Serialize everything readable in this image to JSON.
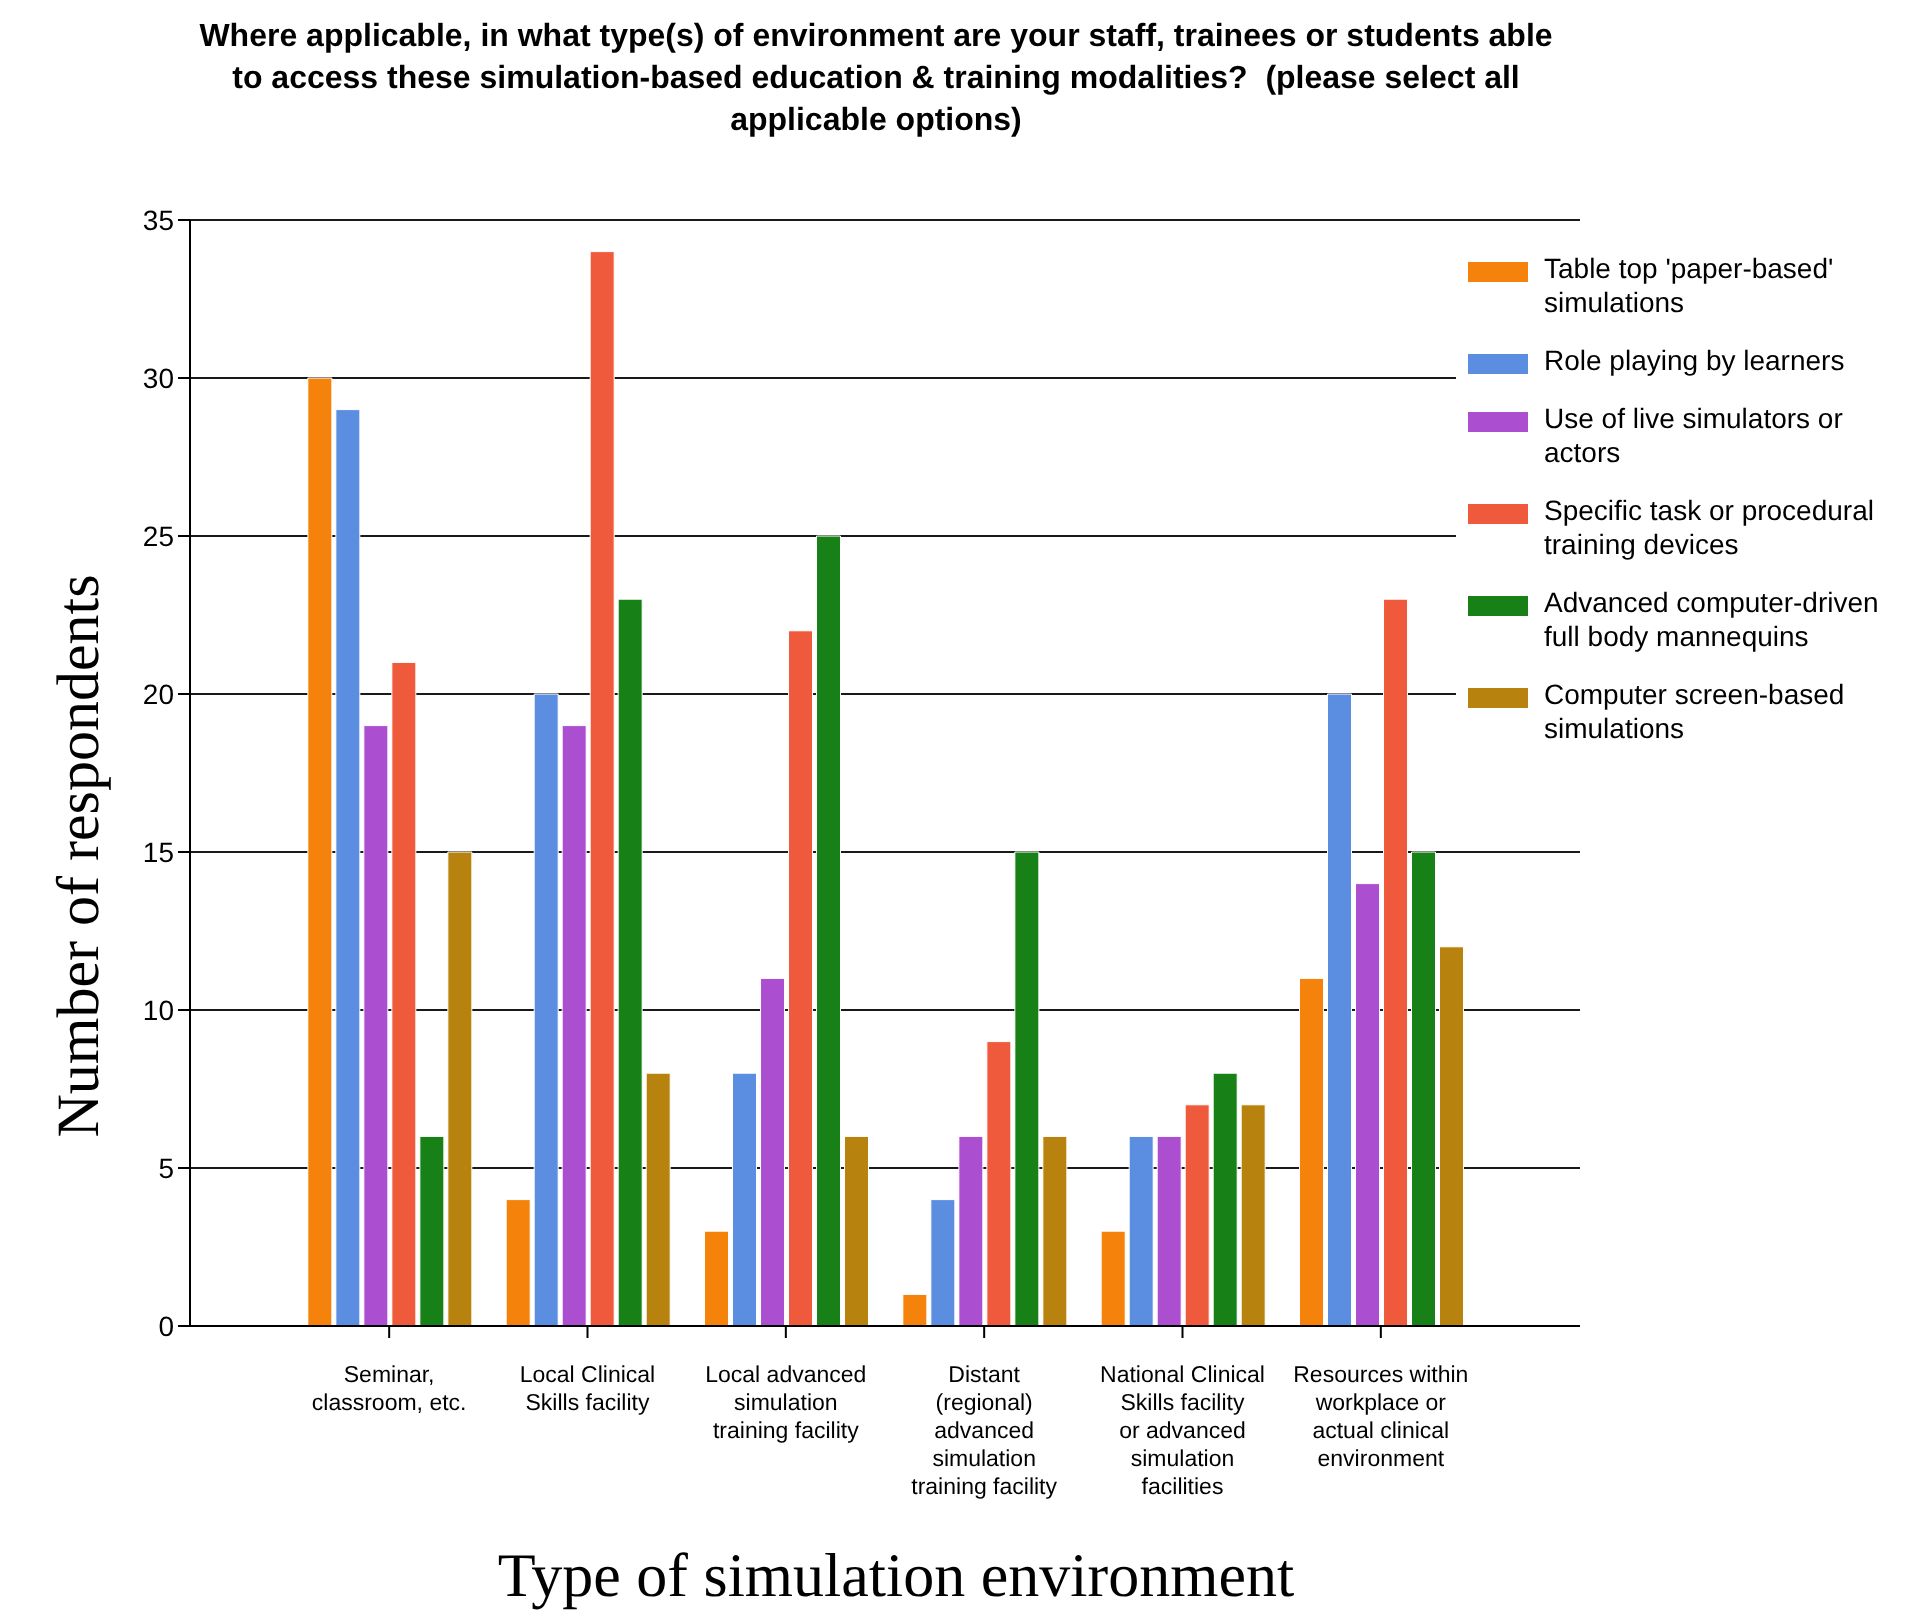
{
  "chart_data": {
    "type": "bar",
    "title": "Where applicable, in what type(s) of environment are your staff, trainees or students able to access these simulation-based education & training modalities?  (please select all applicable options)",
    "xlabel": "Type of simulation environment",
    "ylabel": "Number of respondents",
    "categories": [
      "Seminar, classroom, etc.",
      "Local Clinical Skills facility",
      "Local advanced simulation training facility",
      "Distant (regional) advanced simulation training facility",
      "National Clinical Skills facility or advanced simulation facilities",
      "Resources within workplace or actual clinical environment"
    ],
    "series": [
      {
        "name": "Table top 'paper-based' simulations",
        "color": "#f5820a",
        "values": [
          30,
          4,
          3,
          1,
          3,
          11
        ]
      },
      {
        "name": "Role playing by learners",
        "color": "#5b8ee0",
        "values": [
          29,
          20,
          8,
          4,
          6,
          20
        ]
      },
      {
        "name": "Use of live simulators or actors",
        "color": "#ab4fd0",
        "values": [
          19,
          19,
          11,
          6,
          6,
          14
        ]
      },
      {
        "name": "Specific task or procedural training devices",
        "color": "#f05a3c",
        "values": [
          21,
          34,
          22,
          9,
          7,
          23
        ]
      },
      {
        "name": "Advanced computer-driven full body mannequins",
        "color": "#178017",
        "values": [
          6,
          23,
          25,
          15,
          8,
          15
        ]
      },
      {
        "name": "Computer screen-based simulations",
        "color": "#b8820e",
        "values": [
          15,
          8,
          6,
          6,
          7,
          12
        ]
      }
    ],
    "ylim": [
      0,
      35
    ],
    "yticks": [
      0,
      5,
      10,
      15,
      20,
      25,
      30,
      35
    ],
    "grid": "y",
    "legend": "top right"
  }
}
